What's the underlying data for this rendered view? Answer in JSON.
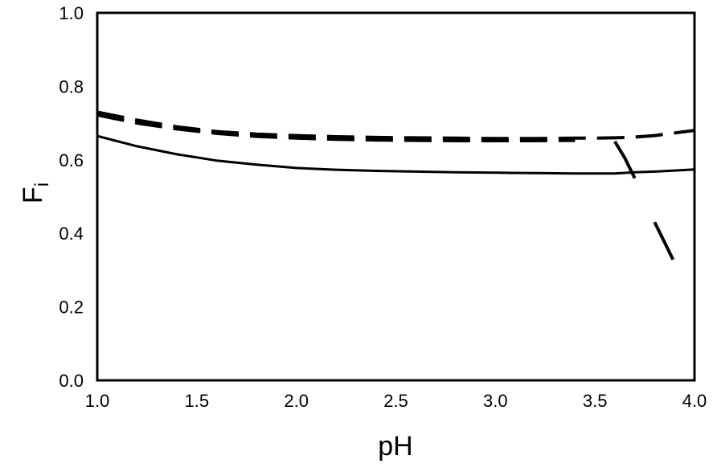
{
  "chart_data": {
    "type": "line",
    "title": "",
    "xlabel": "pH",
    "ylabel": "F",
    "ylabel_subscript": "i",
    "xlim": [
      1.0,
      4.0
    ],
    "ylim": [
      0.0,
      1.0
    ],
    "xticks": [
      "1.0",
      "1.5",
      "2.0",
      "2.5",
      "3.0",
      "3.5",
      "4.0"
    ],
    "yticks": [
      "0.0",
      "0.2",
      "0.4",
      "0.6",
      "0.8",
      "1.0"
    ],
    "grid": false,
    "legend": "none",
    "series": [
      {
        "style": "solid",
        "color": "#000000",
        "x": [
          1.0,
          1.2,
          1.4,
          1.6,
          1.8,
          2.0,
          2.2,
          2.4,
          2.6,
          2.8,
          3.0,
          3.2,
          3.4,
          3.5,
          3.6,
          3.7,
          3.8,
          3.9,
          4.0
        ],
        "y": [
          0.665,
          0.637,
          0.615,
          0.598,
          0.587,
          0.578,
          0.573,
          0.57,
          0.568,
          0.566,
          0.565,
          0.564,
          0.563,
          0.563,
          0.563,
          0.566,
          0.568,
          0.571,
          0.574
        ]
      },
      {
        "style": "dashed",
        "color": "#000000",
        "x": [
          1.0,
          1.2,
          1.4,
          1.6,
          1.8,
          2.0,
          2.2,
          2.4,
          2.6,
          2.8,
          3.0,
          3.2,
          3.4,
          3.5,
          3.6,
          3.7,
          3.8,
          3.9,
          4.0
        ],
        "y": [
          0.73,
          0.708,
          0.69,
          0.677,
          0.67,
          0.666,
          0.663,
          0.661,
          0.66,
          0.659,
          0.658,
          0.658,
          0.659,
          0.659,
          0.66,
          0.662,
          0.666,
          0.673,
          0.68
        ]
      },
      {
        "style": "dashed",
        "color": "#000000",
        "x": [
          1.0,
          1.2,
          1.4,
          1.6,
          1.8,
          2.0,
          2.2,
          2.4,
          2.6,
          2.8,
          3.0,
          3.2,
          3.4
        ],
        "y": [
          0.722,
          0.7,
          0.684,
          0.672,
          0.664,
          0.659,
          0.656,
          0.654,
          0.653,
          0.652,
          0.652,
          0.652,
          0.653
        ]
      },
      {
        "style": "long-dash",
        "color": "#000000",
        "x": [
          3.6,
          3.65,
          3.7,
          3.75,
          3.8,
          3.85,
          3.9,
          3.95,
          4.0
        ],
        "y": [
          0.65,
          0.605,
          0.55,
          0.49,
          0.43,
          0.375,
          0.32,
          0.275,
          0.24
        ]
      }
    ]
  }
}
